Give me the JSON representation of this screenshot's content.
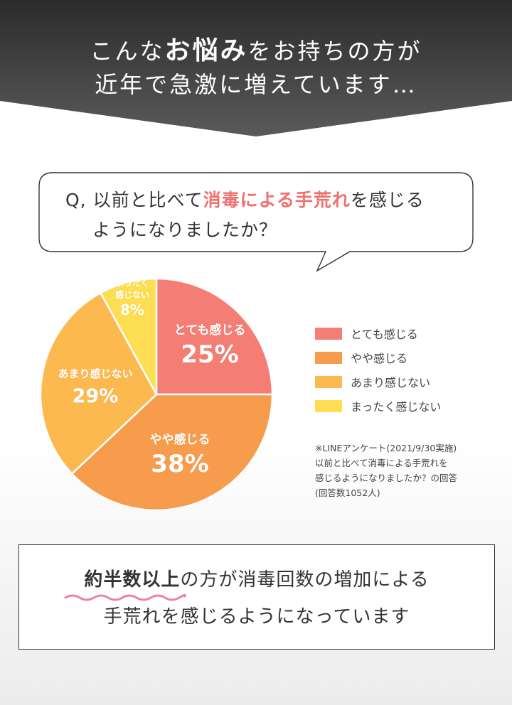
{
  "header": {
    "line1_pre": "こんな",
    "line1_bold": "お悩み",
    "line1_post": "をお持ちの方が",
    "line2": "近年で急激に増えています…"
  },
  "question": {
    "line1_pre": "Q, 以前と比べて",
    "line1_highlight": "消毒による手荒れ",
    "line1_post": "を感じる",
    "line2": "ようになりましたか？"
  },
  "chart_data": {
    "type": "pie",
    "slices": [
      {
        "label": "とても感じる",
        "chart_label": "とても感じる",
        "value": 25,
        "display": "25%",
        "color": "#f47d74"
      },
      {
        "label": "やや感じる",
        "chart_label": "やや感じる",
        "value": 38,
        "display": "38%",
        "color": "#f79b4c"
      },
      {
        "label": "あまり感じない",
        "chart_label": "あまり感じない",
        "value": 29,
        "display": "29%",
        "color": "#fcb950"
      },
      {
        "label": "まったく感じない",
        "chart_label_line1": "まったく",
        "chart_label_line2": "感じない",
        "value": 8,
        "display": "8%",
        "color": "#fddd52"
      }
    ],
    "legend_position": "right"
  },
  "note": {
    "line1": "※LINEアンケート(2021/9/30実施)",
    "line2": "以前と比べて消毒による手荒れを",
    "line3": "感じるようになりましたか？の回答",
    "line4": "(回答数1052人)"
  },
  "conclusion": {
    "line1_bold": "約半数以上",
    "line1_post": "の方が消毒回数の増加による",
    "line2": "手荒れを感じるようになっています"
  },
  "colors": {
    "banner_dark": "#2b2b2b",
    "banner_light": "#555555",
    "highlight": "#f07070",
    "wave": "#ef7fa0"
  }
}
